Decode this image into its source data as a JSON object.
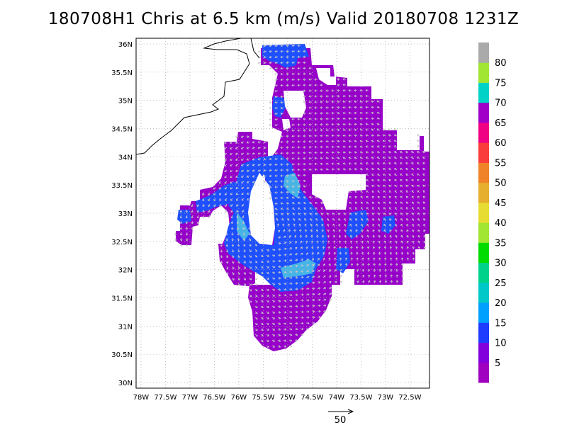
{
  "title": "180708H1 Chris at 6.5 km (m/s) Valid 20180708  1231Z",
  "map": {
    "lon_ticks": [
      "78W",
      "77.5W",
      "77W",
      "76.5W",
      "76W",
      "75.5W",
      "75W",
      "74.5W",
      "74W",
      "73.5W",
      "73W",
      "72.5W"
    ],
    "lat_ticks": [
      "30N",
      "30.5N",
      "31N",
      "31.5N",
      "32N",
      "32.5N",
      "33N",
      "33.5N",
      "34N",
      "34.5N",
      "35N",
      "35.5N",
      "36N"
    ],
    "lon_range": [
      -78.1,
      -72.1
    ],
    "lat_range": [
      29.9,
      36.1
    ]
  },
  "colorbar": {
    "labels": [
      "5",
      "10",
      "15",
      "20",
      "25",
      "30",
      "35",
      "40",
      "45",
      "50",
      "55",
      "60",
      "65",
      "70",
      "75",
      "80"
    ],
    "colors": [
      "#a000c0",
      "#8200dc",
      "#1e3cff",
      "#00a0ff",
      "#00c8c8",
      "#00d28c",
      "#00dc00",
      "#a0e632",
      "#e6dc32",
      "#e6af2d",
      "#f08228",
      "#fa3c3c",
      "#f00082",
      "#a000c8",
      "#00d2c8",
      "#a0e632",
      "#aaaaaa"
    ]
  },
  "reference_vector": {
    "label": "50"
  },
  "colors": {
    "purple": "#9600c8",
    "magenta_purple": "#8200dc",
    "blue": "#1e50ff",
    "light_blue": "#46b4e6",
    "coastline": "#000000",
    "grid": "#aaaaaa",
    "arrow": "#c8c8c8"
  }
}
